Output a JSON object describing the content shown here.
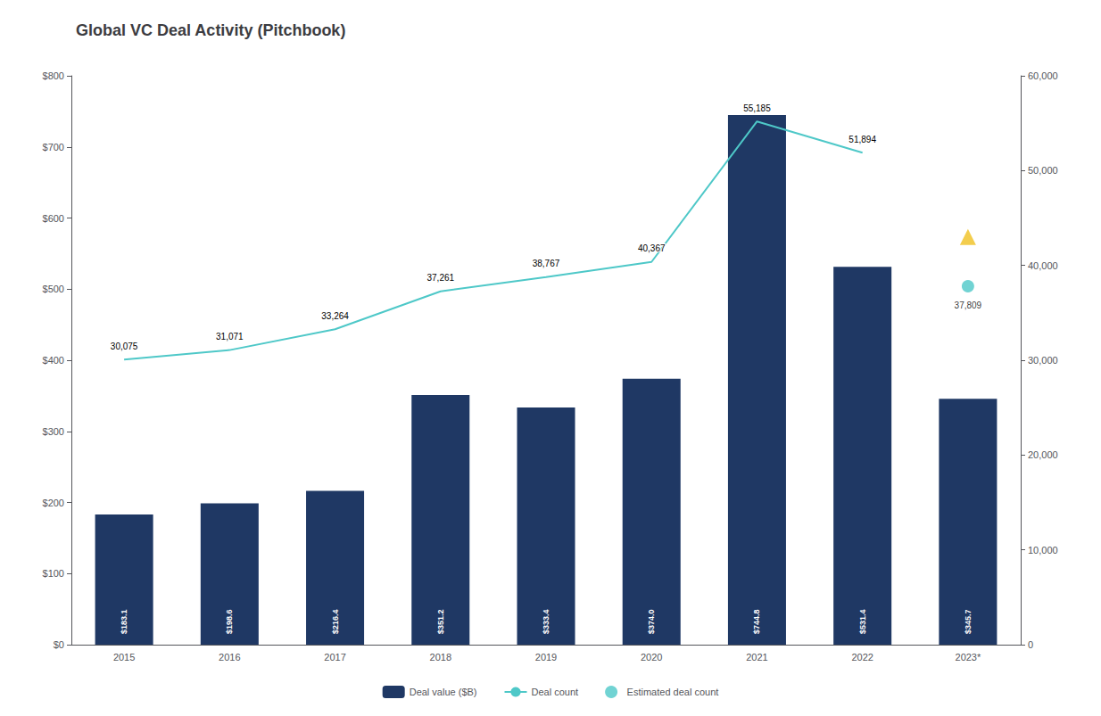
{
  "chart_data": {
    "type": "bar",
    "title": "Global VC Deal Activity (Pitchbook)",
    "categories": [
      "2015",
      "2016",
      "2017",
      "2018",
      "2019",
      "2020",
      "2021",
      "2022",
      "2023*"
    ],
    "series": [
      {
        "name": "Deal value ($B)",
        "type": "bar",
        "color": "#1F3864",
        "values": [
          183.1,
          198.6,
          216.4,
          351.2,
          333.4,
          374.0,
          744.8,
          531.4,
          345.7
        ],
        "value_labels": [
          "$183.1",
          "$198.6",
          "$216.4",
          "$351.2",
          "$333.4",
          "$374.0",
          "$744.8",
          "$531.4",
          "$345.7"
        ],
        "data_labels": true
      },
      {
        "name": "Deal count",
        "type": "line",
        "color": "#4EC8C8",
        "axis": "y2",
        "values": [
          30075,
          31071,
          33264,
          37261,
          38767,
          40367,
          55185,
          51894,
          null
        ],
        "value_labels": [
          "30,075",
          "31,071",
          "33,264",
          "37,261",
          "38,767",
          "40,367",
          "55,185",
          "51,894",
          null
        ],
        "data_labels": true
      },
      {
        "name": "Estimated deal count",
        "type": "scatter",
        "color": "#4EC8C8",
        "marker": "circle",
        "axis": "y2",
        "values": [
          null,
          null,
          null,
          null,
          null,
          null,
          null,
          null,
          37809
        ],
        "value_labels": [
          null,
          null,
          null,
          null,
          null,
          null,
          null,
          null,
          "37,809"
        ],
        "data_labels": true
      },
      {
        "type": "scatter",
        "color": "#F0C020",
        "marker": "triangle",
        "axis": "y2",
        "values": [
          null,
          null,
          null,
          null,
          null,
          null,
          null,
          null,
          43000
        ],
        "data_labels": false
      }
    ],
    "ylim": [
      0,
      800
    ],
    "yticks": [
      {
        "value": 0,
        "label": "$0"
      },
      {
        "value": 100,
        "label": "$100"
      },
      {
        "value": 200,
        "label": "$200"
      },
      {
        "value": 300,
        "label": "$300"
      },
      {
        "value": 400,
        "label": "$400"
      },
      {
        "value": 500,
        "label": "$500"
      },
      {
        "value": 600,
        "label": "$600"
      },
      {
        "value": 700,
        "label": "$700"
      },
      {
        "value": 800,
        "label": "$800"
      }
    ],
    "y2lim": [
      0,
      60000
    ],
    "y2ticks": [
      0,
      {
        "value": 10000,
        "label": "10,000"
      },
      {
        "value": 20000,
        "label": "20,000"
      },
      {
        "value": 30000,
        "label": "30,000"
      },
      {
        "value": 40000,
        "label": "40,000"
      },
      {
        "value": 50000,
        "label": "50,000"
      },
      {
        "value": 60000,
        "label": "60,000"
      }
    ],
    "grid": false,
    "legend": "bottom"
  }
}
